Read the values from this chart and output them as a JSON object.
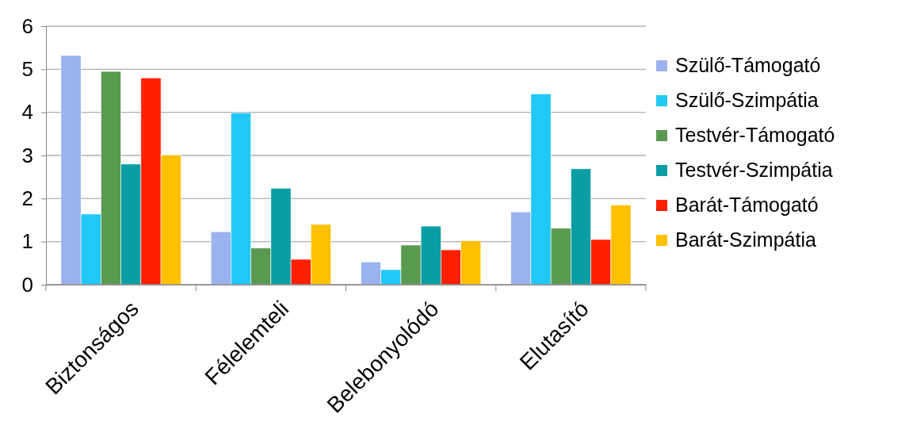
{
  "chart_data": {
    "type": "bar",
    "categories": [
      "Biztonságos",
      "Félelemteli",
      "Belebonyolódó",
      "Elutasító"
    ],
    "series": [
      {
        "name": "Szülő-Támogató",
        "color": "#9ab2ee",
        "values": [
          5.32,
          1.23,
          0.53,
          1.69
        ]
      },
      {
        "name": "Szülő-Szimpátia",
        "color": "#22c8f5",
        "values": [
          1.64,
          3.99,
          0.35,
          4.43
        ]
      },
      {
        "name": "Testvér-Támogató",
        "color": "#5a9a50",
        "values": [
          4.95,
          0.85,
          0.92,
          1.31
        ]
      },
      {
        "name": "Testvér-Szimpátia",
        "color": "#0a9ea4",
        "values": [
          2.8,
          2.24,
          1.36,
          2.69
        ]
      },
      {
        "name": "Barát-Támogató",
        "color": "#ff2000",
        "values": [
          4.8,
          0.59,
          0.81,
          1.05
        ]
      },
      {
        "name": "Barát-Szimpátia",
        "color": "#ffc000",
        "values": [
          3.01,
          1.4,
          1.02,
          1.85
        ]
      }
    ],
    "ylim": [
      0,
      6
    ],
    "yticks": [
      0,
      1,
      2,
      3,
      4,
      5,
      6
    ],
    "grid": "y",
    "legend": "right"
  }
}
